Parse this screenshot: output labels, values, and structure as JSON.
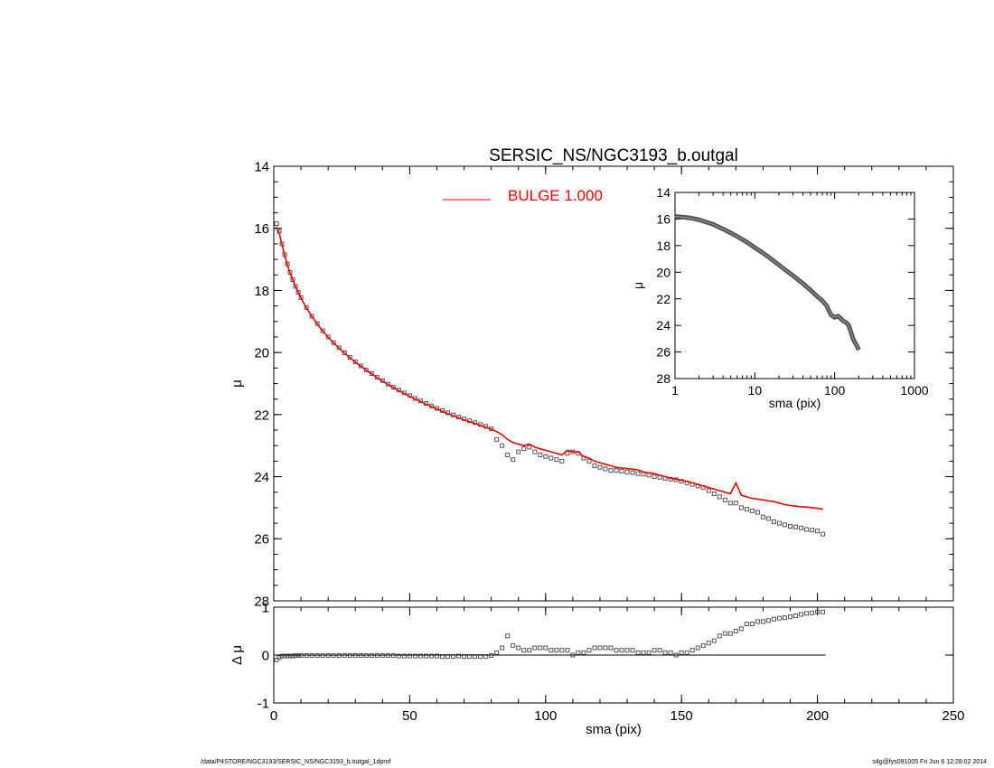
{
  "colors": {
    "model": "#ff0000",
    "data": "#000000",
    "points": "#555555",
    "background": "#ffffff"
  },
  "chart_data": [
    {
      "id": "main",
      "type": "scatter",
      "title": "SERSIC_NS/NGC3193_b.outgal",
      "xlabel": "",
      "ylabel": "μ",
      "xlim": [
        0,
        250
      ],
      "ylim": [
        28,
        14
      ],
      "y_inverted": true,
      "xticks": [
        0,
        50,
        100,
        150,
        200,
        250
      ],
      "yticks": [
        14,
        16,
        18,
        20,
        22,
        24,
        26,
        28
      ],
      "legend": {
        "label": "BULGE  1.000",
        "position": "top-center",
        "color": "#ff0000"
      },
      "series": [
        {
          "name": "",
          "kind": "points",
          "color": "#555555",
          "x": [
            1,
            2,
            3,
            4,
            5,
            6,
            7,
            8,
            9,
            10,
            12,
            14,
            16,
            18,
            20,
            22,
            24,
            26,
            28,
            30,
            32,
            34,
            36,
            38,
            40,
            42,
            44,
            46,
            48,
            50,
            52,
            54,
            56,
            58,
            60,
            62,
            64,
            66,
            68,
            70,
            72,
            74,
            76,
            78,
            80,
            82,
            84,
            86,
            88,
            90,
            92,
            94,
            96,
            98,
            100,
            102,
            104,
            106,
            108,
            110,
            112,
            114,
            116,
            118,
            120,
            122,
            124,
            126,
            128,
            130,
            132,
            134,
            136,
            138,
            140,
            142,
            144,
            146,
            148,
            150,
            152,
            154,
            156,
            158,
            160,
            162,
            164,
            166,
            168,
            170,
            172,
            174,
            176,
            178,
            180,
            182,
            184,
            186,
            188,
            190,
            192,
            194,
            196,
            198,
            200,
            202
          ],
          "y": [
            15.85,
            16.1,
            16.5,
            16.85,
            17.15,
            17.42,
            17.65,
            17.87,
            18.06,
            18.23,
            18.55,
            18.83,
            19.07,
            19.3,
            19.5,
            19.68,
            19.85,
            20.01,
            20.16,
            20.3,
            20.43,
            20.56,
            20.68,
            20.8,
            20.91,
            21.02,
            21.12,
            21.21,
            21.3,
            21.39,
            21.48,
            21.56,
            21.64,
            21.72,
            21.8,
            21.87,
            21.94,
            22.01,
            22.08,
            22.14,
            22.2,
            22.26,
            22.32,
            22.38,
            22.46,
            22.8,
            23.0,
            23.3,
            23.45,
            23.2,
            23.1,
            23.05,
            23.2,
            23.3,
            23.35,
            23.4,
            23.45,
            23.5,
            23.25,
            23.2,
            23.25,
            23.4,
            23.5,
            23.65,
            23.7,
            23.75,
            23.8,
            23.8,
            23.82,
            23.85,
            23.87,
            23.9,
            23.92,
            23.95,
            24.0,
            24.02,
            24.05,
            24.08,
            24.1,
            24.15,
            24.2,
            24.25,
            24.3,
            24.35,
            24.45,
            24.55,
            24.65,
            24.75,
            24.85,
            24.85,
            25.0,
            25.05,
            25.1,
            25.15,
            25.3,
            25.35,
            25.45,
            25.5,
            25.55,
            25.6,
            25.62,
            25.65,
            25.7,
            25.72,
            25.75,
            25.85
          ]
        },
        {
          "name": "",
          "kind": "line",
          "color": "#ff0000",
          "x": [
            1,
            2,
            3,
            4,
            5,
            6,
            7,
            8,
            9,
            10,
            12,
            14,
            16,
            18,
            20,
            22,
            24,
            26,
            28,
            30,
            32,
            34,
            36,
            38,
            40,
            42,
            44,
            46,
            48,
            50,
            52,
            54,
            56,
            58,
            60,
            62,
            64,
            66,
            68,
            70,
            72,
            74,
            76,
            78,
            80,
            82,
            84,
            86,
            88,
            90,
            92,
            94,
            96,
            98,
            100,
            102,
            104,
            106,
            108,
            110,
            112,
            114,
            116,
            118,
            120,
            122,
            124,
            126,
            128,
            130,
            132,
            134,
            136,
            138,
            140,
            142,
            144,
            146,
            148,
            150,
            152,
            154,
            156,
            158,
            160,
            162,
            164,
            166,
            168,
            170,
            172,
            174,
            176,
            178,
            180,
            182,
            184,
            186,
            188,
            190,
            192,
            194,
            196,
            198,
            200,
            202
          ],
          "y": [
            15.95,
            16.15,
            16.52,
            16.87,
            17.17,
            17.44,
            17.67,
            17.88,
            18.07,
            18.24,
            18.56,
            18.84,
            19.08,
            19.31,
            19.51,
            19.69,
            19.86,
            20.02,
            20.17,
            20.31,
            20.44,
            20.57,
            20.69,
            20.81,
            20.92,
            21.03,
            21.13,
            21.23,
            21.32,
            21.41,
            21.5,
            21.58,
            21.66,
            21.74,
            21.82,
            21.9,
            21.97,
            22.04,
            22.1,
            22.17,
            22.23,
            22.29,
            22.35,
            22.41,
            22.47,
            22.55,
            22.65,
            22.8,
            22.9,
            22.95,
            23.0,
            22.95,
            23.05,
            23.1,
            23.15,
            23.2,
            23.25,
            23.3,
            23.15,
            23.2,
            23.2,
            23.35,
            23.4,
            23.5,
            23.55,
            23.6,
            23.65,
            23.7,
            23.72,
            23.74,
            23.76,
            23.78,
            23.85,
            23.88,
            23.9,
            23.95,
            24.0,
            24.05,
            24.08,
            24.12,
            24.15,
            24.2,
            24.25,
            24.3,
            24.35,
            24.4,
            24.45,
            24.5,
            24.55,
            24.2,
            24.6,
            24.65,
            24.7,
            24.72,
            24.75,
            24.78,
            24.8,
            24.85,
            24.9,
            24.93,
            24.95,
            24.97,
            24.98,
            25.0,
            25.02,
            25.05
          ]
        }
      ]
    },
    {
      "id": "inset",
      "type": "line",
      "title": "",
      "xlabel": "sma (pix)",
      "ylabel": "μ",
      "xscale": "log",
      "xlim": [
        1,
        1000
      ],
      "ylim": [
        28,
        14
      ],
      "y_inverted": true,
      "xticks": [
        1,
        10,
        100,
        1000
      ],
      "xtick_labels": [
        "1",
        "10",
        "100",
        "1000"
      ],
      "yticks": [
        14,
        16,
        18,
        20,
        22,
        24,
        26,
        28
      ],
      "series": [
        {
          "name": "",
          "color": "#555555",
          "x": [
            1,
            1.5,
            2,
            3,
            4,
            5,
            6,
            8,
            10,
            13,
            16,
            20,
            25,
            30,
            40,
            50,
            60,
            70,
            75,
            80,
            85,
            90,
            100,
            110,
            120,
            130,
            140,
            150,
            160,
            170,
            180,
            190,
            200
          ],
          "y": [
            15.8,
            15.9,
            16.05,
            16.4,
            16.75,
            17.05,
            17.3,
            17.75,
            18.15,
            18.6,
            19.0,
            19.45,
            19.9,
            20.25,
            20.85,
            21.35,
            21.8,
            22.15,
            22.35,
            22.55,
            22.9,
            23.2,
            23.4,
            23.3,
            23.5,
            23.7,
            23.8,
            24.0,
            24.5,
            25.0,
            25.3,
            25.55,
            25.85
          ]
        }
      ]
    },
    {
      "id": "residual",
      "type": "scatter",
      "title": "",
      "xlabel": "sma (pix)",
      "ylabel": "Δ μ",
      "xlim": [
        0,
        250
      ],
      "ylim": [
        -1,
        1
      ],
      "xticks": [
        0,
        50,
        100,
        150,
        200,
        250
      ],
      "yticks": [
        -1,
        0,
        1
      ],
      "series": [
        {
          "name": "",
          "color": "#555555",
          "x": [
            1,
            2,
            3,
            4,
            5,
            6,
            7,
            8,
            9,
            10,
            12,
            14,
            16,
            18,
            20,
            22,
            24,
            26,
            28,
            30,
            32,
            34,
            36,
            38,
            40,
            42,
            44,
            46,
            48,
            50,
            52,
            54,
            56,
            58,
            60,
            62,
            64,
            66,
            68,
            70,
            72,
            74,
            76,
            78,
            80,
            82,
            84,
            86,
            88,
            90,
            92,
            94,
            96,
            98,
            100,
            102,
            104,
            106,
            108,
            110,
            112,
            114,
            116,
            118,
            120,
            122,
            124,
            126,
            128,
            130,
            132,
            134,
            136,
            138,
            140,
            142,
            144,
            146,
            148,
            150,
            152,
            154,
            156,
            158,
            160,
            162,
            164,
            166,
            168,
            170,
            172,
            174,
            176,
            178,
            180,
            182,
            184,
            186,
            188,
            190,
            192,
            194,
            196,
            198,
            200,
            202
          ],
          "y": [
            -0.1,
            -0.05,
            -0.02,
            -0.02,
            -0.02,
            -0.02,
            -0.02,
            -0.01,
            -0.01,
            -0.01,
            -0.01,
            -0.01,
            -0.01,
            -0.01,
            -0.01,
            -0.01,
            -0.01,
            -0.01,
            -0.01,
            -0.01,
            -0.01,
            -0.01,
            -0.01,
            -0.01,
            -0.01,
            -0.01,
            -0.01,
            -0.02,
            -0.02,
            -0.02,
            -0.02,
            -0.02,
            -0.02,
            -0.02,
            -0.02,
            -0.03,
            -0.03,
            -0.03,
            -0.02,
            -0.03,
            -0.03,
            -0.03,
            -0.03,
            -0.03,
            -0.01,
            0.05,
            0.15,
            0.4,
            0.2,
            0.15,
            0.1,
            0.1,
            0.15,
            0.15,
            0.15,
            0.1,
            0.1,
            0.1,
            0.1,
            0.0,
            0.05,
            0.05,
            0.1,
            0.15,
            0.15,
            0.15,
            0.15,
            0.1,
            0.1,
            0.1,
            0.1,
            0.05,
            0.05,
            0.05,
            0.1,
            0.1,
            0.05,
            0.05,
            0.0,
            0.05,
            0.05,
            0.1,
            0.15,
            0.2,
            0.25,
            0.3,
            0.4,
            0.45,
            0.45,
            0.5,
            0.55,
            0.65,
            0.65,
            0.7,
            0.7,
            0.72,
            0.75,
            0.77,
            0.78,
            0.8,
            0.82,
            0.85,
            0.87,
            0.88,
            0.9,
            0.9
          ]
        },
        {
          "name": "",
          "kind": "zero-line",
          "color": "#000000",
          "x": [
            0,
            203
          ],
          "y": [
            0,
            0
          ]
        }
      ]
    }
  ],
  "footer": {
    "left": "/data/P4STORE/NGC3193/SERSIC_NS/NGC3193_b.outgal_1dprof",
    "right": "s4g@fys091005  Fri Jun  6 12:28:02 2014"
  }
}
